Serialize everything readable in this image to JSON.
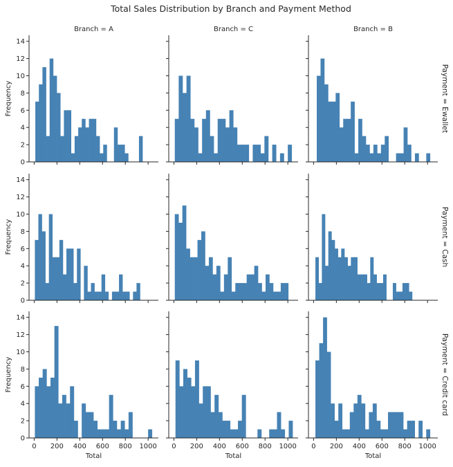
{
  "chart_data": {
    "type": "bar",
    "title": "Total Sales Distribution by Branch and Payment Method",
    "xlabel": "Total",
    "ylabel": "Frequency",
    "xlim": [
      -45,
      1090
    ],
    "ylim": [
      0,
      14.7
    ],
    "xticks": [
      0,
      200,
      400,
      600,
      800,
      1000
    ],
    "yticks": [
      0,
      2,
      4,
      6,
      8,
      10,
      12,
      14
    ],
    "grid": false,
    "bar_color": "#4682b4",
    "columns": [
      "Branch = A",
      "Branch = C",
      "Branch = B"
    ],
    "rows": [
      "Payment = Ewallet",
      "Payment = Cash",
      "Payment = Credit card"
    ],
    "panels": [
      {
        "col": 0,
        "row": 0,
        "range": [
          10,
          951
        ],
        "counts": [
          7,
          9,
          11,
          3,
          12,
          10,
          8,
          3,
          6,
          6,
          1,
          3,
          4,
          5,
          4,
          5,
          5,
          3,
          1,
          2,
          0,
          0,
          4,
          2,
          2,
          1,
          0,
          0,
          0,
          3
        ]
      },
      {
        "col": 1,
        "row": 0,
        "range": [
          8,
          1034
        ],
        "counts": [
          5,
          10,
          8,
          10,
          5,
          4,
          1,
          5,
          6,
          3,
          1,
          5,
          5,
          4,
          6,
          4,
          2,
          2,
          2,
          0,
          2,
          2,
          1,
          3,
          0,
          2,
          0,
          1,
          0,
          2
        ]
      },
      {
        "col": 2,
        "row": 0,
        "range": [
          28,
          1022
        ],
        "counts": [
          10,
          12,
          9,
          7,
          7,
          8,
          4,
          5,
          5,
          7,
          1,
          5,
          3,
          2,
          1,
          2,
          1,
          2,
          3,
          0,
          0,
          1,
          1,
          4,
          2,
          0,
          1,
          0,
          0,
          1
        ]
      },
      {
        "col": 0,
        "row": 1,
        "range": [
          6,
          929
        ],
        "counts": [
          7,
          10,
          8,
          2,
          10,
          5,
          5,
          7,
          3,
          6,
          6,
          2,
          6,
          0,
          4,
          1,
          2,
          1,
          1,
          3,
          1,
          0,
          1,
          1,
          3,
          1,
          1,
          0,
          1,
          2
        ]
      },
      {
        "col": 1,
        "row": 1,
        "range": [
          8,
          1004
        ],
        "counts": [
          10,
          9,
          11,
          6,
          5,
          5,
          7,
          8,
          4,
          5,
          3,
          4,
          1,
          3,
          5,
          1,
          2,
          2,
          2,
          3,
          3,
          4,
          2,
          1,
          3,
          2,
          1,
          1,
          2,
          2
        ]
      },
      {
        "col": 2,
        "row": 1,
        "range": [
          16,
          865
        ],
        "counts": [
          5,
          2,
          10,
          4,
          8,
          7,
          6,
          5,
          6,
          5,
          4,
          5,
          5,
          3,
          3,
          3,
          2,
          5,
          3,
          2,
          2,
          3,
          0,
          0,
          2,
          1,
          1,
          2,
          2,
          1
        ]
      },
      {
        "col": 0,
        "row": 2,
        "range": [
          6,
          1034
        ],
        "counts": [
          6,
          7,
          8,
          6,
          7,
          13,
          4,
          5,
          4,
          6,
          2,
          0,
          4,
          3,
          3,
          2,
          1,
          1,
          1,
          5,
          2,
          1,
          2,
          1,
          3,
          0,
          0,
          0,
          0,
          1
        ]
      },
      {
        "col": 1,
        "row": 2,
        "range": [
          14,
          1042
        ],
        "counts": [
          9,
          6,
          8,
          7,
          6,
          9,
          4,
          6,
          6,
          3,
          5,
          3,
          2,
          2,
          1,
          1,
          2,
          5,
          0,
          0,
          0,
          1,
          0,
          0,
          1,
          1,
          3,
          1,
          0,
          2
        ]
      },
      {
        "col": 2,
        "row": 2,
        "range": [
          16,
          1022
        ],
        "counts": [
          9,
          11,
          14,
          10,
          4,
          2,
          4,
          1,
          1,
          3,
          4,
          5,
          4,
          1,
          3,
          4,
          2,
          1,
          1,
          3,
          3,
          3,
          3,
          1,
          2,
          2,
          0,
          2,
          0,
          1
        ]
      }
    ]
  }
}
